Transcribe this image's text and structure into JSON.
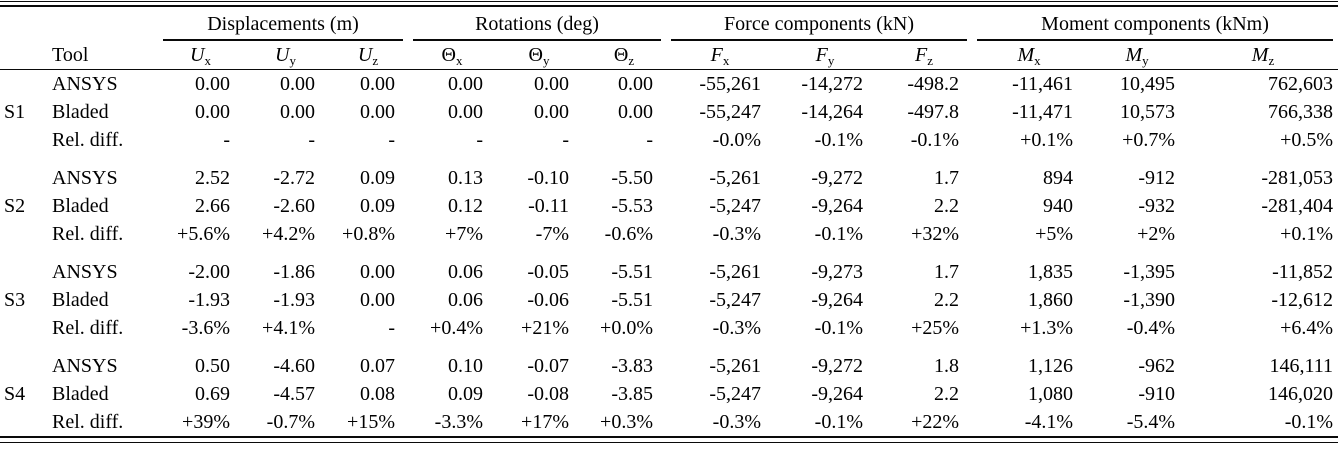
{
  "table": {
    "tool_header": "Tool",
    "groups": [
      {
        "label": "Displacements (m)"
      },
      {
        "label": "Rotations (deg)"
      },
      {
        "label": "Force components (kN)"
      },
      {
        "label": "Moment components (kNm)"
      }
    ],
    "columns": [
      {
        "main": "U",
        "sub": "x"
      },
      {
        "main": "U",
        "sub": "y"
      },
      {
        "main": "U",
        "sub": "z"
      },
      {
        "main": "Θ",
        "sub": "x"
      },
      {
        "main": "Θ",
        "sub": "y"
      },
      {
        "main": "Θ",
        "sub": "z"
      },
      {
        "main": "F",
        "sub": "x"
      },
      {
        "main": "F",
        "sub": "y"
      },
      {
        "main": "F",
        "sub": "z"
      },
      {
        "main": "M",
        "sub": "x"
      },
      {
        "main": "M",
        "sub": "y"
      },
      {
        "main": "M",
        "sub": "z"
      }
    ],
    "sections": [
      {
        "id": "S1",
        "rows": [
          {
            "tool": "ANSYS",
            "values": [
              "0.00",
              "0.00",
              "0.00",
              "0.00",
              "0.00",
              "0.00",
              "-55,261",
              "-14,272",
              "-498.2",
              "-11,461",
              "10,495",
              "762,603"
            ]
          },
          {
            "tool": "Bladed",
            "values": [
              "0.00",
              "0.00",
              "0.00",
              "0.00",
              "0.00",
              "0.00",
              "-55,247",
              "-14,264",
              "-497.8",
              "-11,471",
              "10,573",
              "766,338"
            ]
          },
          {
            "tool": "Rel. diff.",
            "values": [
              "-",
              "-",
              "-",
              "-",
              "-",
              "-",
              "-0.0%",
              "-0.1%",
              "-0.1%",
              "+0.1%",
              "+0.7%",
              "+0.5%"
            ]
          }
        ]
      },
      {
        "id": "S2",
        "rows": [
          {
            "tool": "ANSYS",
            "values": [
              "2.52",
              "-2.72",
              "0.09",
              "0.13",
              "-0.10",
              "-5.50",
              "-5,261",
              "-9,272",
              "1.7",
              "894",
              "-912",
              "-281,053"
            ]
          },
          {
            "tool": "Bladed",
            "values": [
              "2.66",
              "-2.60",
              "0.09",
              "0.12",
              "-0.11",
              "-5.53",
              "-5,247",
              "-9,264",
              "2.2",
              "940",
              "-932",
              "-281,404"
            ]
          },
          {
            "tool": "Rel. diff.",
            "values": [
              "+5.6%",
              "+4.2%",
              "+0.8%",
              "+7%",
              "-7%",
              "-0.6%",
              "-0.3%",
              "-0.1%",
              "+32%",
              "+5%",
              "+2%",
              "+0.1%"
            ]
          }
        ]
      },
      {
        "id": "S3",
        "rows": [
          {
            "tool": "ANSYS",
            "values": [
              "-2.00",
              "-1.86",
              "0.00",
              "0.06",
              "-0.05",
              "-5.51",
              "-5,261",
              "-9,273",
              "1.7",
              "1,835",
              "-1,395",
              "-11,852"
            ]
          },
          {
            "tool": "Bladed",
            "values": [
              "-1.93",
              "-1.93",
              "0.00",
              "0.06",
              "-0.06",
              "-5.51",
              "-5,247",
              "-9,264",
              "2.2",
              "1,860",
              "-1,390",
              "-12,612"
            ]
          },
          {
            "tool": "Rel. diff.",
            "values": [
              "-3.6%",
              "+4.1%",
              "-",
              "+0.4%",
              "+21%",
              "+0.0%",
              "-0.3%",
              "-0.1%",
              "+25%",
              "+1.3%",
              "-0.4%",
              "+6.4%"
            ]
          }
        ]
      },
      {
        "id": "S4",
        "rows": [
          {
            "tool": "ANSYS",
            "values": [
              "0.50",
              "-4.60",
              "0.07",
              "0.10",
              "-0.07",
              "-3.83",
              "-5,261",
              "-9,272",
              "1.8",
              "1,126",
              "-962",
              "146,111"
            ]
          },
          {
            "tool": "Bladed",
            "values": [
              "0.69",
              "-4.57",
              "0.08",
              "0.09",
              "-0.08",
              "-3.85",
              "-5,247",
              "-9,264",
              "2.2",
              "1,080",
              "-910",
              "146,020"
            ]
          },
          {
            "tool": "Rel. diff.",
            "values": [
              "+39%",
              "-0.7%",
              "+15%",
              "-3.3%",
              "+17%",
              "+0.3%",
              "-0.3%",
              "-0.1%",
              "+22%",
              "-4.1%",
              "-5.4%",
              "-0.1%"
            ]
          }
        ]
      }
    ]
  }
}
